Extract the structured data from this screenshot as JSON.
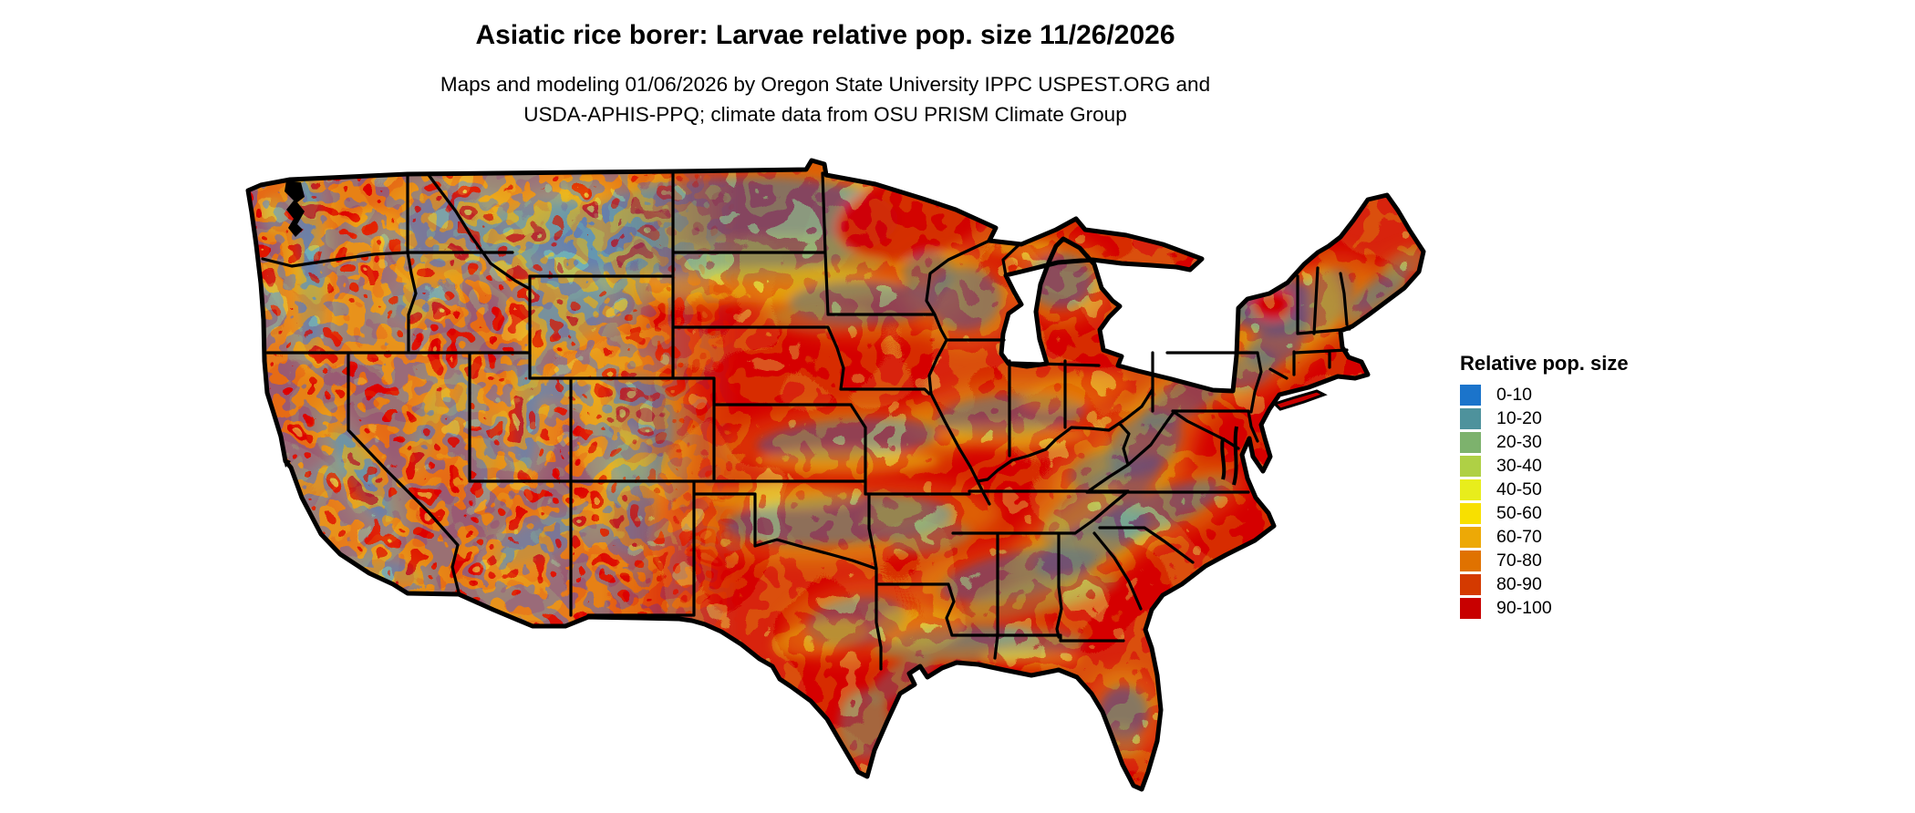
{
  "header": {
    "title": "Asiatic rice borer: Larvae relative pop. size 11/26/2026",
    "subtitle_line1": "Maps and modeling 01/06/2026 by Oregon State University IPPC USPEST.ORG and",
    "subtitle_line2": "USDA-APHIS-PPQ; climate data from OSU PRISM Climate Group"
  },
  "legend": {
    "title": "Relative pop. size",
    "entries": [
      {
        "label": "0-10",
        "color": "#1b74cb"
      },
      {
        "label": "10-20",
        "color": "#4e929c"
      },
      {
        "label": "20-30",
        "color": "#7db26d"
      },
      {
        "label": "30-40",
        "color": "#afd045"
      },
      {
        "label": "40-50",
        "color": "#e8ed1c"
      },
      {
        "label": "50-60",
        "color": "#f8e000"
      },
      {
        "label": "60-70",
        "color": "#eda906"
      },
      {
        "label": "70-80",
        "color": "#e07200"
      },
      {
        "label": "80-90",
        "color": "#d43a00"
      },
      {
        "label": "90-100",
        "color": "#c80000"
      }
    ]
  },
  "map": {
    "region": "Continental United States",
    "background": "#ffffff",
    "border_color": "#000000",
    "base_class": "90-100",
    "feature_fields": [
      "cx",
      "cy",
      "rx",
      "ry",
      "rotate_deg",
      "class_index",
      "opacity"
    ],
    "features": [
      [
        338,
        245,
        14,
        55,
        0,
        0,
        0.75
      ],
      [
        300,
        235,
        12,
        20,
        0,
        2,
        0.6
      ],
      [
        410,
        245,
        28,
        16,
        0,
        6,
        0.6
      ],
      [
        432,
        262,
        22,
        12,
        0,
        4,
        0.5
      ],
      [
        342,
        330,
        14,
        55,
        0,
        0,
        0.7
      ],
      [
        462,
        330,
        30,
        20,
        -20,
        0,
        0.55
      ],
      [
        300,
        330,
        10,
        45,
        0,
        2,
        0.5
      ],
      [
        490,
        255,
        48,
        42,
        0,
        0,
        0.55
      ],
      [
        600,
        265,
        70,
        45,
        0,
        0,
        0.5
      ],
      [
        396,
        520,
        60,
        16,
        62,
        0,
        0.75
      ],
      [
        337,
        535,
        16,
        55,
        55,
        2,
        0.5
      ],
      [
        430,
        628,
        32,
        11,
        12,
        0,
        0.6
      ],
      [
        470,
        470,
        9,
        48,
        15,
        0,
        0.45
      ],
      [
        505,
        445,
        9,
        45,
        12,
        0,
        0.4
      ],
      [
        535,
        495,
        9,
        45,
        8,
        0,
        0.4
      ],
      [
        577,
        455,
        13,
        65,
        3,
        0,
        0.65
      ],
      [
        612,
        428,
        32,
        11,
        0,
        0,
        0.55
      ],
      [
        622,
        335,
        45,
        38,
        0,
        0,
        0.6
      ],
      [
        682,
        322,
        13,
        28,
        -15,
        0,
        0.5
      ],
      [
        700,
        470,
        38,
        62,
        0,
        0,
        0.6
      ],
      [
        688,
        505,
        22,
        35,
        0,
        4,
        0.35
      ],
      [
        692,
        565,
        28,
        42,
        0,
        0,
        0.45
      ],
      [
        592,
        592,
        55,
        20,
        -25,
        0,
        0.5
      ],
      [
        800,
        250,
        185,
        55,
        -3,
        0,
        0.7
      ],
      [
        650,
        262,
        70,
        40,
        0,
        0,
        0.5
      ],
      [
        860,
        285,
        110,
        28,
        0,
        2,
        0.45
      ],
      [
        850,
        312,
        140,
        20,
        0,
        4,
        0.45
      ],
      [
        1000,
        238,
        85,
        45,
        -12,
        9,
        0.95
      ],
      [
        945,
        332,
        80,
        24,
        0,
        0,
        0.6
      ],
      [
        900,
        348,
        55,
        16,
        0,
        2,
        0.4
      ],
      [
        1058,
        328,
        40,
        34,
        0,
        0,
        0.6
      ],
      [
        1018,
        300,
        28,
        24,
        0,
        0,
        0.5
      ],
      [
        1163,
        308,
        36,
        30,
        0,
        0,
        0.65
      ],
      [
        1120,
        273,
        40,
        11,
        0,
        4,
        0.45
      ],
      [
        930,
        482,
        100,
        22,
        -4,
        0,
        0.6
      ],
      [
        930,
        506,
        100,
        14,
        0,
        4,
        0.45
      ],
      [
        920,
        570,
        125,
        27,
        -3,
        0,
        0.65
      ],
      [
        860,
        545,
        90,
        14,
        0,
        4,
        0.4
      ],
      [
        1020,
        590,
        45,
        16,
        -8,
        1,
        0.5
      ],
      [
        985,
        565,
        40,
        18,
        -8,
        2,
        0.45
      ],
      [
        938,
        682,
        55,
        26,
        -10,
        0,
        0.55
      ],
      [
        900,
        700,
        55,
        18,
        -10,
        4,
        0.4
      ],
      [
        948,
        795,
        28,
        38,
        0,
        1,
        0.6
      ],
      [
        988,
        745,
        42,
        16,
        -35,
        1,
        0.55
      ],
      [
        1075,
        708,
        115,
        17,
        -2,
        1,
        0.6
      ],
      [
        1058,
        698,
        75,
        13,
        -2,
        0,
        0.5
      ],
      [
        1008,
        688,
        48,
        22,
        0,
        4,
        0.4
      ],
      [
        1118,
        630,
        88,
        25,
        -12,
        0,
        0.6
      ],
      [
        1198,
        596,
        68,
        22,
        -26,
        0,
        0.6
      ],
      [
        1140,
        655,
        88,
        17,
        -12,
        2,
        0.5
      ],
      [
        1268,
        560,
        72,
        21,
        -20,
        0,
        0.6
      ],
      [
        1318,
        540,
        38,
        15,
        -20,
        1,
        0.4
      ],
      [
        1232,
        782,
        27,
        29,
        0,
        0,
        0.7
      ],
      [
        1229,
        812,
        23,
        16,
        0,
        2,
        0.5
      ],
      [
        1130,
        722,
        55,
        9,
        0,
        4,
        0.45
      ],
      [
        1208,
        548,
        78,
        24,
        -34,
        0,
        0.55
      ],
      [
        1205,
        515,
        34,
        17,
        -20,
        0,
        0.5
      ],
      [
        1255,
        488,
        45,
        30,
        -36,
        0,
        0.6
      ],
      [
        1300,
        436,
        58,
        20,
        -33,
        0,
        0.55
      ],
      [
        1372,
        405,
        30,
        19,
        -30,
        0,
        0.55
      ],
      [
        1325,
        346,
        52,
        17,
        -4,
        0,
        0.55
      ],
      [
        1398,
        380,
        32,
        20,
        -25,
        0,
        0.6
      ],
      [
        1398,
        335,
        44,
        33,
        0,
        0,
        0.7
      ],
      [
        1396,
        334,
        23,
        16,
        0,
        9,
        1
      ],
      [
        1448,
        332,
        44,
        27,
        -45,
        0,
        0.55
      ],
      [
        1452,
        330,
        20,
        38,
        0,
        4,
        0.3
      ],
      [
        1508,
        328,
        42,
        14,
        -38,
        1,
        0.6
      ],
      [
        1515,
        315,
        40,
        12,
        -38,
        0,
        0.5
      ],
      [
        1540,
        290,
        25,
        14,
        -30,
        2,
        0.5
      ],
      [
        1108,
        455,
        82,
        22,
        -4,
        0,
        0.6
      ],
      [
        1108,
        478,
        82,
        13,
        0,
        4,
        0.4
      ],
      [
        1180,
        430,
        60,
        18,
        -10,
        6,
        0.45
      ],
      [
        1185,
        560,
        48,
        13,
        -30,
        4,
        0.4
      ]
    ]
  }
}
